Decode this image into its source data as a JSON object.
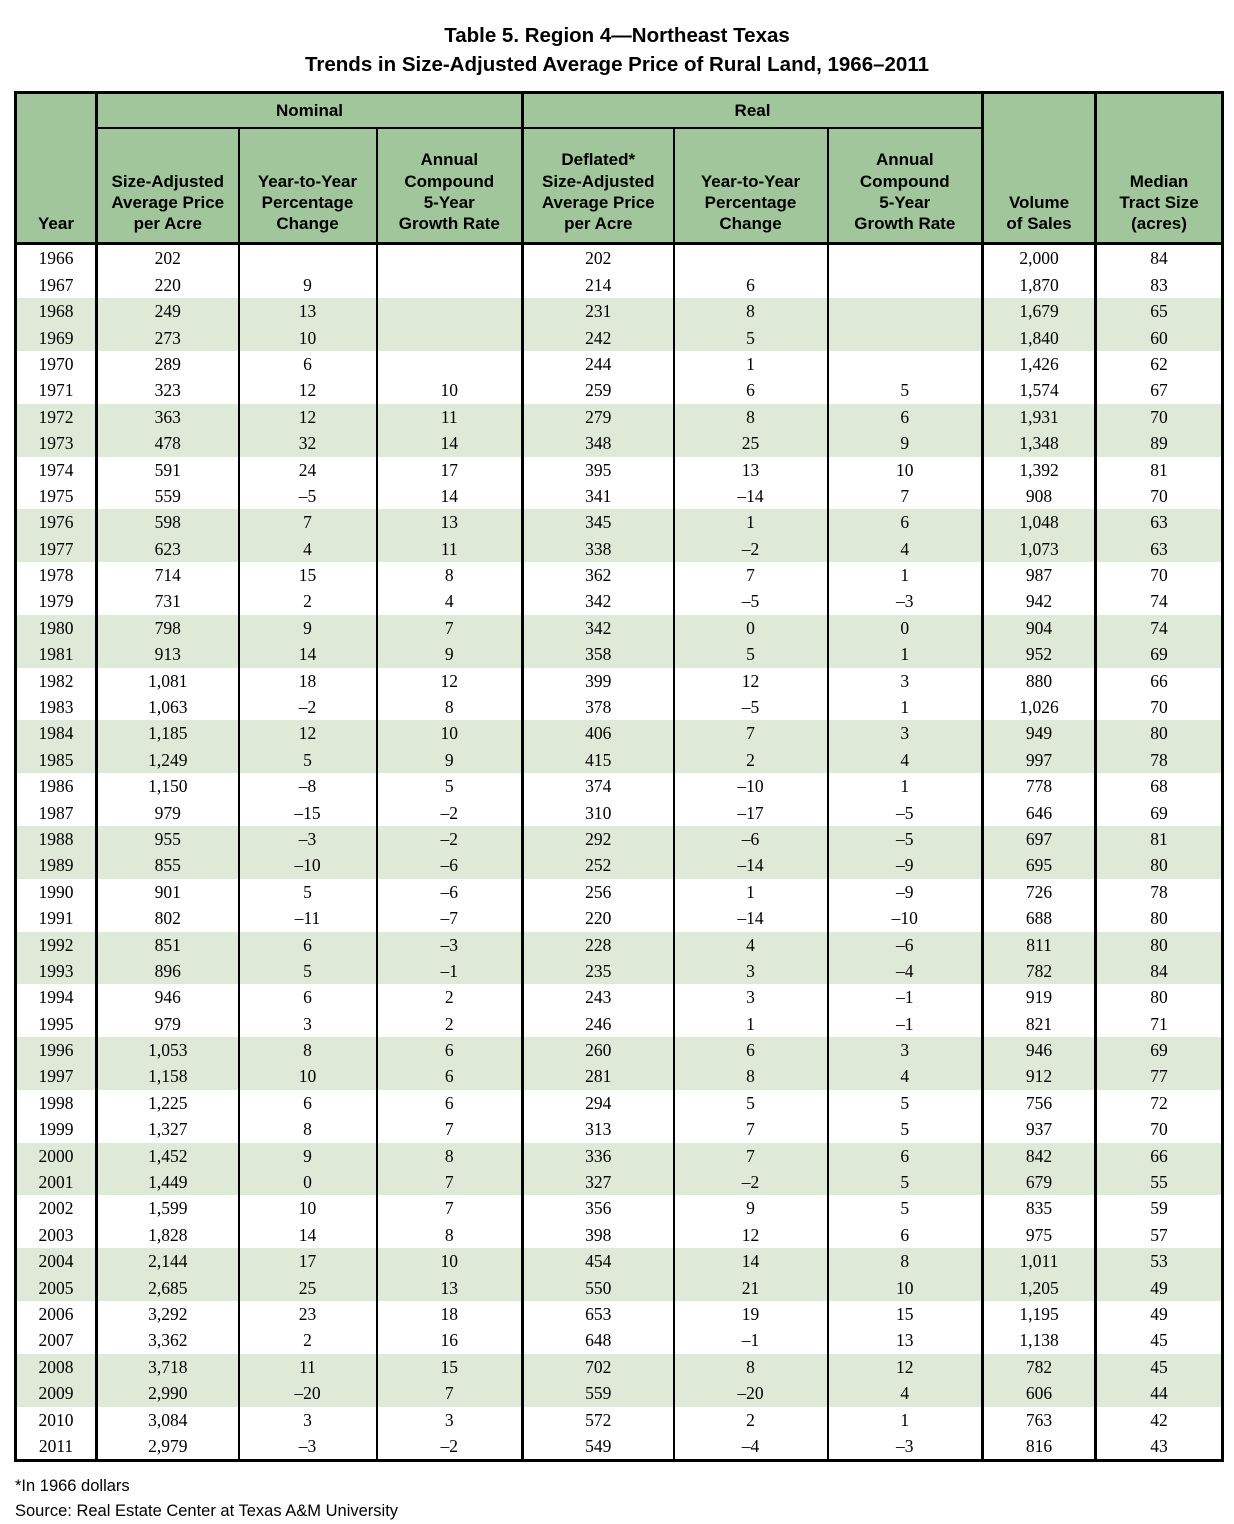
{
  "title": {
    "line1": "Table 5. Region 4—Northeast Texas",
    "line2": "Trends in Size-Adjusted Average Price of Rural Land, 1966–2011"
  },
  "table": {
    "group_nominal": "Nominal",
    "group_real": "Real",
    "headers": {
      "year": "Year",
      "price_nominal": "Size-Adjusted\nAverage Price\nper Acre",
      "yoy_nominal": "Year-to-Year\nPercentage\nChange",
      "growth_nominal": "Annual\nCompound\n5-Year\nGrowth Rate",
      "price_real": "Deflated*\nSize-Adjusted\nAverage Price\nper Acre",
      "yoy_real": "Year-to-Year\nPercentage\nChange",
      "growth_real": "Annual\nCompound\n5-Year\nGrowth Rate",
      "volume": "Volume\nof Sales",
      "median": "Median\nTract Size\n(acres)"
    },
    "rows": [
      [
        "1966",
        "202",
        "",
        "",
        "202",
        "",
        "",
        "2,000",
        "84"
      ],
      [
        "1967",
        "220",
        "9",
        "",
        "214",
        "6",
        "",
        "1,870",
        "83"
      ],
      [
        "1968",
        "249",
        "13",
        "",
        "231",
        "8",
        "",
        "1,679",
        "65"
      ],
      [
        "1969",
        "273",
        "10",
        "",
        "242",
        "5",
        "",
        "1,840",
        "60"
      ],
      [
        "1970",
        "289",
        "6",
        "",
        "244",
        "1",
        "",
        "1,426",
        "62"
      ],
      [
        "1971",
        "323",
        "12",
        "10",
        "259",
        "6",
        "5",
        "1,574",
        "67"
      ],
      [
        "1972",
        "363",
        "12",
        "11",
        "279",
        "8",
        "6",
        "1,931",
        "70"
      ],
      [
        "1973",
        "478",
        "32",
        "14",
        "348",
        "25",
        "9",
        "1,348",
        "89"
      ],
      [
        "1974",
        "591",
        "24",
        "17",
        "395",
        "13",
        "10",
        "1,392",
        "81"
      ],
      [
        "1975",
        "559",
        "–5",
        "14",
        "341",
        "–14",
        "7",
        "908",
        "70"
      ],
      [
        "1976",
        "598",
        "7",
        "13",
        "345",
        "1",
        "6",
        "1,048",
        "63"
      ],
      [
        "1977",
        "623",
        "4",
        "11",
        "338",
        "–2",
        "4",
        "1,073",
        "63"
      ],
      [
        "1978",
        "714",
        "15",
        "8",
        "362",
        "7",
        "1",
        "987",
        "70"
      ],
      [
        "1979",
        "731",
        "2",
        "4",
        "342",
        "–5",
        "–3",
        "942",
        "74"
      ],
      [
        "1980",
        "798",
        "9",
        "7",
        "342",
        "0",
        "0",
        "904",
        "74"
      ],
      [
        "1981",
        "913",
        "14",
        "9",
        "358",
        "5",
        "1",
        "952",
        "69"
      ],
      [
        "1982",
        "1,081",
        "18",
        "12",
        "399",
        "12",
        "3",
        "880",
        "66"
      ],
      [
        "1983",
        "1,063",
        "–2",
        "8",
        "378",
        "–5",
        "1",
        "1,026",
        "70"
      ],
      [
        "1984",
        "1,185",
        "12",
        "10",
        "406",
        "7",
        "3",
        "949",
        "80"
      ],
      [
        "1985",
        "1,249",
        "5",
        "9",
        "415",
        "2",
        "4",
        "997",
        "78"
      ],
      [
        "1986",
        "1,150",
        "–8",
        "5",
        "374",
        "–10",
        "1",
        "778",
        "68"
      ],
      [
        "1987",
        "979",
        "–15",
        "–2",
        "310",
        "–17",
        "–5",
        "646",
        "69"
      ],
      [
        "1988",
        "955",
        "–3",
        "–2",
        "292",
        "–6",
        "–5",
        "697",
        "81"
      ],
      [
        "1989",
        "855",
        "–10",
        "–6",
        "252",
        "–14",
        "–9",
        "695",
        "80"
      ],
      [
        "1990",
        "901",
        "5",
        "–6",
        "256",
        "1",
        "–9",
        "726",
        "78"
      ],
      [
        "1991",
        "802",
        "–11",
        "–7",
        "220",
        "–14",
        "–10",
        "688",
        "80"
      ],
      [
        "1992",
        "851",
        "6",
        "–3",
        "228",
        "4",
        "–6",
        "811",
        "80"
      ],
      [
        "1993",
        "896",
        "5",
        "–1",
        "235",
        "3",
        "–4",
        "782",
        "84"
      ],
      [
        "1994",
        "946",
        "6",
        "2",
        "243",
        "3",
        "–1",
        "919",
        "80"
      ],
      [
        "1995",
        "979",
        "3",
        "2",
        "246",
        "1",
        "–1",
        "821",
        "71"
      ],
      [
        "1996",
        "1,053",
        "8",
        "6",
        "260",
        "6",
        "3",
        "946",
        "69"
      ],
      [
        "1997",
        "1,158",
        "10",
        "6",
        "281",
        "8",
        "4",
        "912",
        "77"
      ],
      [
        "1998",
        "1,225",
        "6",
        "6",
        "294",
        "5",
        "5",
        "756",
        "72"
      ],
      [
        "1999",
        "1,327",
        "8",
        "7",
        "313",
        "7",
        "5",
        "937",
        "70"
      ],
      [
        "2000",
        "1,452",
        "9",
        "8",
        "336",
        "7",
        "6",
        "842",
        "66"
      ],
      [
        "2001",
        "1,449",
        "0",
        "7",
        "327",
        "–2",
        "5",
        "679",
        "55"
      ],
      [
        "2002",
        "1,599",
        "10",
        "7",
        "356",
        "9",
        "5",
        "835",
        "59"
      ],
      [
        "2003",
        "1,828",
        "14",
        "8",
        "398",
        "12",
        "6",
        "975",
        "57"
      ],
      [
        "2004",
        "2,144",
        "17",
        "10",
        "454",
        "14",
        "8",
        "1,011",
        "53"
      ],
      [
        "2005",
        "2,685",
        "25",
        "13",
        "550",
        "21",
        "10",
        "1,205",
        "49"
      ],
      [
        "2006",
        "3,292",
        "23",
        "18",
        "653",
        "19",
        "15",
        "1,195",
        "49"
      ],
      [
        "2007",
        "3,362",
        "2",
        "16",
        "648",
        "–1",
        "13",
        "1,138",
        "45"
      ],
      [
        "2008",
        "3,718",
        "11",
        "15",
        "702",
        "8",
        "12",
        "782",
        "45"
      ],
      [
        "2009",
        "2,990",
        "–20",
        "7",
        "559",
        "–20",
        "4",
        "606",
        "44"
      ],
      [
        "2010",
        "3,084",
        "3",
        "3",
        "572",
        "2",
        "1",
        "763",
        "42"
      ],
      [
        "2011",
        "2,979",
        "–3",
        "–2",
        "549",
        "–4",
        "–3",
        "816",
        "43"
      ]
    ]
  },
  "footnotes": {
    "note": "*In 1966 dollars",
    "source": "Source: Real Estate Center at Texas A&M University"
  },
  "colors": {
    "header_green": "#a2c69b",
    "band_green": "#dfe9d7",
    "border_black": "#000000"
  }
}
